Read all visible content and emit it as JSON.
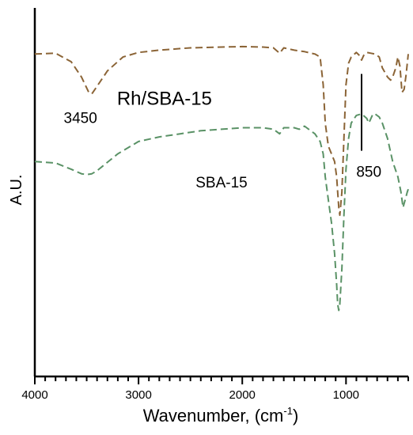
{
  "chart_data": {
    "type": "line",
    "xlabel": "Wavenumber, (cm",
    "xlabel_sup": "-1",
    "xlabel_tail": ")",
    "ylabel": "A.U.",
    "xlim": [
      4000,
      400
    ],
    "x_reversed": true,
    "xticks": [
      4000,
      3000,
      2000,
      1000
    ],
    "xtick_labels": [
      "4000",
      "3000",
      "2000",
      "1000"
    ],
    "yticks": false,
    "grid": false,
    "series": [
      {
        "name": "Rh/SBA-15",
        "color": "#8B6436",
        "dash": "dashed",
        "x": [
          4000,
          3800,
          3650,
          3550,
          3480,
          3450,
          3400,
          3300,
          3150,
          3000,
          2800,
          2500,
          2200,
          2000,
          1800,
          1700,
          1640,
          1600,
          1500,
          1400,
          1300,
          1250,
          1220,
          1200,
          1170,
          1140,
          1110,
          1090,
          1080,
          1070,
          1060,
          1040,
          1020,
          1000,
          975,
          950,
          900,
          870,
          850,
          830,
          800,
          760,
          720,
          680,
          650,
          600,
          570,
          550,
          520,
          500,
          480,
          460,
          440,
          420,
          400
        ],
        "y": [
          0.95,
          0.955,
          0.9,
          0.8,
          0.7,
          0.69,
          0.74,
          0.84,
          0.93,
          0.96,
          0.975,
          0.99,
          0.995,
          0.998,
          0.995,
          0.99,
          0.955,
          0.99,
          0.975,
          0.965,
          0.95,
          0.93,
          0.75,
          0.5,
          0.35,
          0.3,
          0.25,
          0.15,
          0.05,
          -0.05,
          -0.1,
          0.05,
          0.4,
          0.75,
          0.89,
          0.93,
          0.96,
          0.94,
          0.91,
          0.94,
          0.96,
          0.955,
          0.95,
          0.93,
          0.86,
          0.8,
          0.78,
          0.8,
          0.86,
          0.93,
          0.87,
          0.7,
          0.72,
          0.82,
          0.95
        ]
      },
      {
        "name": "SBA-15",
        "color": "#5A9266",
        "dash": "dashed",
        "x": [
          4000,
          3800,
          3650,
          3550,
          3500,
          3450,
          3400,
          3200,
          3000,
          2800,
          2600,
          2400,
          2200,
          2000,
          1800,
          1700,
          1640,
          1600,
          1500,
          1450,
          1400,
          1350,
          1300,
          1250,
          1220,
          1200,
          1170,
          1140,
          1110,
          1090,
          1080,
          1070,
          1060,
          1040,
          1020,
          1000,
          975,
          950,
          900,
          850,
          800,
          780,
          760,
          740,
          720,
          680,
          650,
          600,
          550,
          500,
          470,
          450,
          430,
          410,
          400
        ],
        "y": [
          0.25,
          0.24,
          0.2,
          0.17,
          0.165,
          0.17,
          0.19,
          0.3,
          0.38,
          0.41,
          0.43,
          0.45,
          0.46,
          0.47,
          0.47,
          0.46,
          0.43,
          0.47,
          0.47,
          0.46,
          0.48,
          0.455,
          0.43,
          0.38,
          0.3,
          0.15,
          0.0,
          -0.15,
          -0.35,
          -0.55,
          -0.68,
          -0.72,
          -0.68,
          -0.45,
          -0.1,
          0.2,
          0.4,
          0.5,
          0.55,
          0.56,
          0.53,
          0.5,
          0.53,
          0.56,
          0.56,
          0.54,
          0.5,
          0.4,
          0.25,
          0.15,
          0.05,
          -0.05,
          0.0,
          0.05,
          0.07
        ]
      }
    ],
    "ylim": [
      -1.15,
      1.25
    ],
    "annotations": [
      {
        "text": "Rh/SBA-15",
        "x": 2750,
        "y": 0.62,
        "size": "large"
      },
      {
        "text": "3450",
        "x": 3560,
        "y": 0.5,
        "size": "medium"
      },
      {
        "text": "850",
        "x": 780,
        "y": 0.15,
        "size": "medium"
      },
      {
        "text": "SBA-15",
        "x": 2200,
        "y": 0.08,
        "size": "medium"
      }
    ],
    "marker_line": {
      "x": 850,
      "y_top": 0.82,
      "y_bottom": 0.32
    }
  }
}
